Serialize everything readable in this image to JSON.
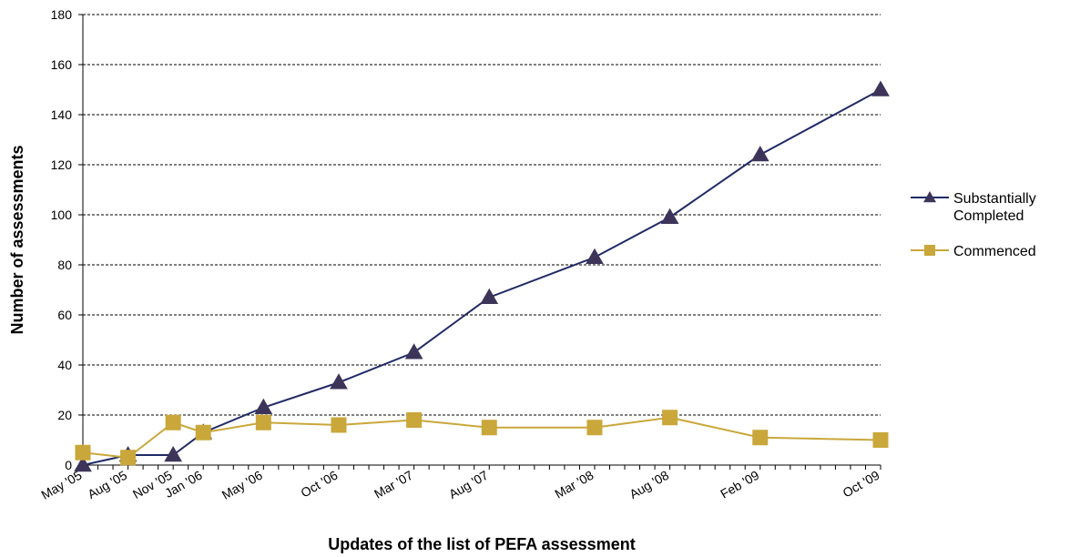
{
  "chart_data": {
    "type": "line",
    "title": "",
    "xlabel": "Updates of the list of PEFA assessment",
    "ylabel": "Number of assessments",
    "ylim": [
      0,
      180
    ],
    "yticks": [
      0,
      20,
      40,
      60,
      80,
      100,
      120,
      140,
      160,
      180
    ],
    "grid": "horizontal dashed",
    "legend_position": "right",
    "x_axis_type": "date",
    "x_range": [
      "2005-05",
      "2009-10"
    ],
    "x": [
      "2005-05",
      "2005-08",
      "2005-11",
      "2006-01",
      "2006-05",
      "2006-10",
      "2007-03",
      "2007-08",
      "2008-03",
      "2008-08",
      "2009-02",
      "2009-10"
    ],
    "categories": [
      "May '05",
      "Aug '05",
      "Nov '05",
      "Jan '06",
      "May '06",
      "Oct '06",
      "Mar '07",
      "Aug '07",
      "Mar '08",
      "Aug '08",
      "Feb '09",
      "Oct '09"
    ],
    "series": [
      {
        "name": "Substantially Completed",
        "legend_lines": [
          "Substantially",
          "Completed"
        ],
        "color": "#1F2A66",
        "marker_color": "#3D3559",
        "marker": "triangle",
        "values": [
          0,
          4,
          4,
          13,
          23,
          33,
          45,
          67,
          83,
          99,
          124,
          150
        ]
      },
      {
        "name": "Commenced",
        "legend_lines": [
          "Commenced"
        ],
        "color": "#C9A73A",
        "marker_color": "#C9A73A",
        "marker": "square",
        "values": [
          5,
          3,
          17,
          13,
          17,
          16,
          18,
          15,
          15,
          19,
          11,
          10
        ]
      }
    ]
  }
}
